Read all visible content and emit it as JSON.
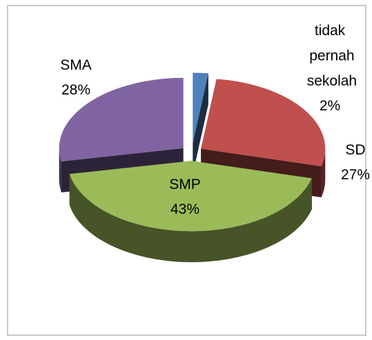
{
  "chart_data": {
    "type": "pie",
    "categories": [
      "tidak pernah sekolah",
      "SD",
      "SMP",
      "SMA"
    ],
    "values": [
      2,
      27,
      43,
      28
    ],
    "value_labels": [
      "2%",
      "27%",
      "43%",
      "28%"
    ],
    "colors": [
      "#4f81bd",
      "#c0504d",
      "#9bbb59",
      "#8064a2"
    ]
  }
}
